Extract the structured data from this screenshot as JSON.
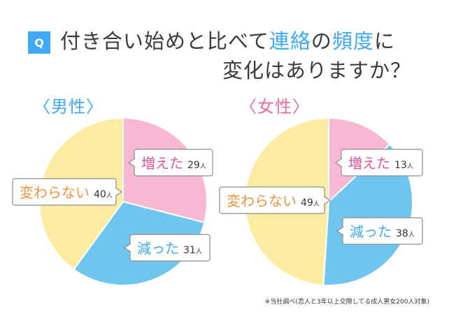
{
  "header": {
    "badge": "Q",
    "line1_a": "付き合い始めと比べて",
    "line1_b": "連絡",
    "line1_c": "の",
    "line1_d": "頻度",
    "line1_e": "に",
    "line2": "変化はありますか？"
  },
  "footnote": "※当社調べ(恋人と3年以上交際してる成人男女200人対象)",
  "colors": {
    "increase": "#f7b8d4",
    "decrease": "#6ec6ee",
    "unchanged": "#fbeca2",
    "label_increase": "#e0559a",
    "label_decrease": "#3fa9f5",
    "label_unchanged": "#f0923c"
  },
  "chart_data": [
    {
      "type": "pie",
      "title": "〈男性〉",
      "unit": "人",
      "slices": [
        {
          "label": "増えた",
          "value": 29,
          "color_key": "increase"
        },
        {
          "label": "減った",
          "value": 31,
          "color_key": "decrease"
        },
        {
          "label": "変わらない",
          "value": 40,
          "color_key": "unchanged"
        }
      ]
    },
    {
      "type": "pie",
      "title": "〈女性〉",
      "unit": "人",
      "slices": [
        {
          "label": "増えた",
          "value": 13,
          "color_key": "increase"
        },
        {
          "label": "減った",
          "value": 38,
          "color_key": "decrease"
        },
        {
          "label": "変わらない",
          "value": 49,
          "color_key": "unchanged"
        }
      ]
    }
  ]
}
